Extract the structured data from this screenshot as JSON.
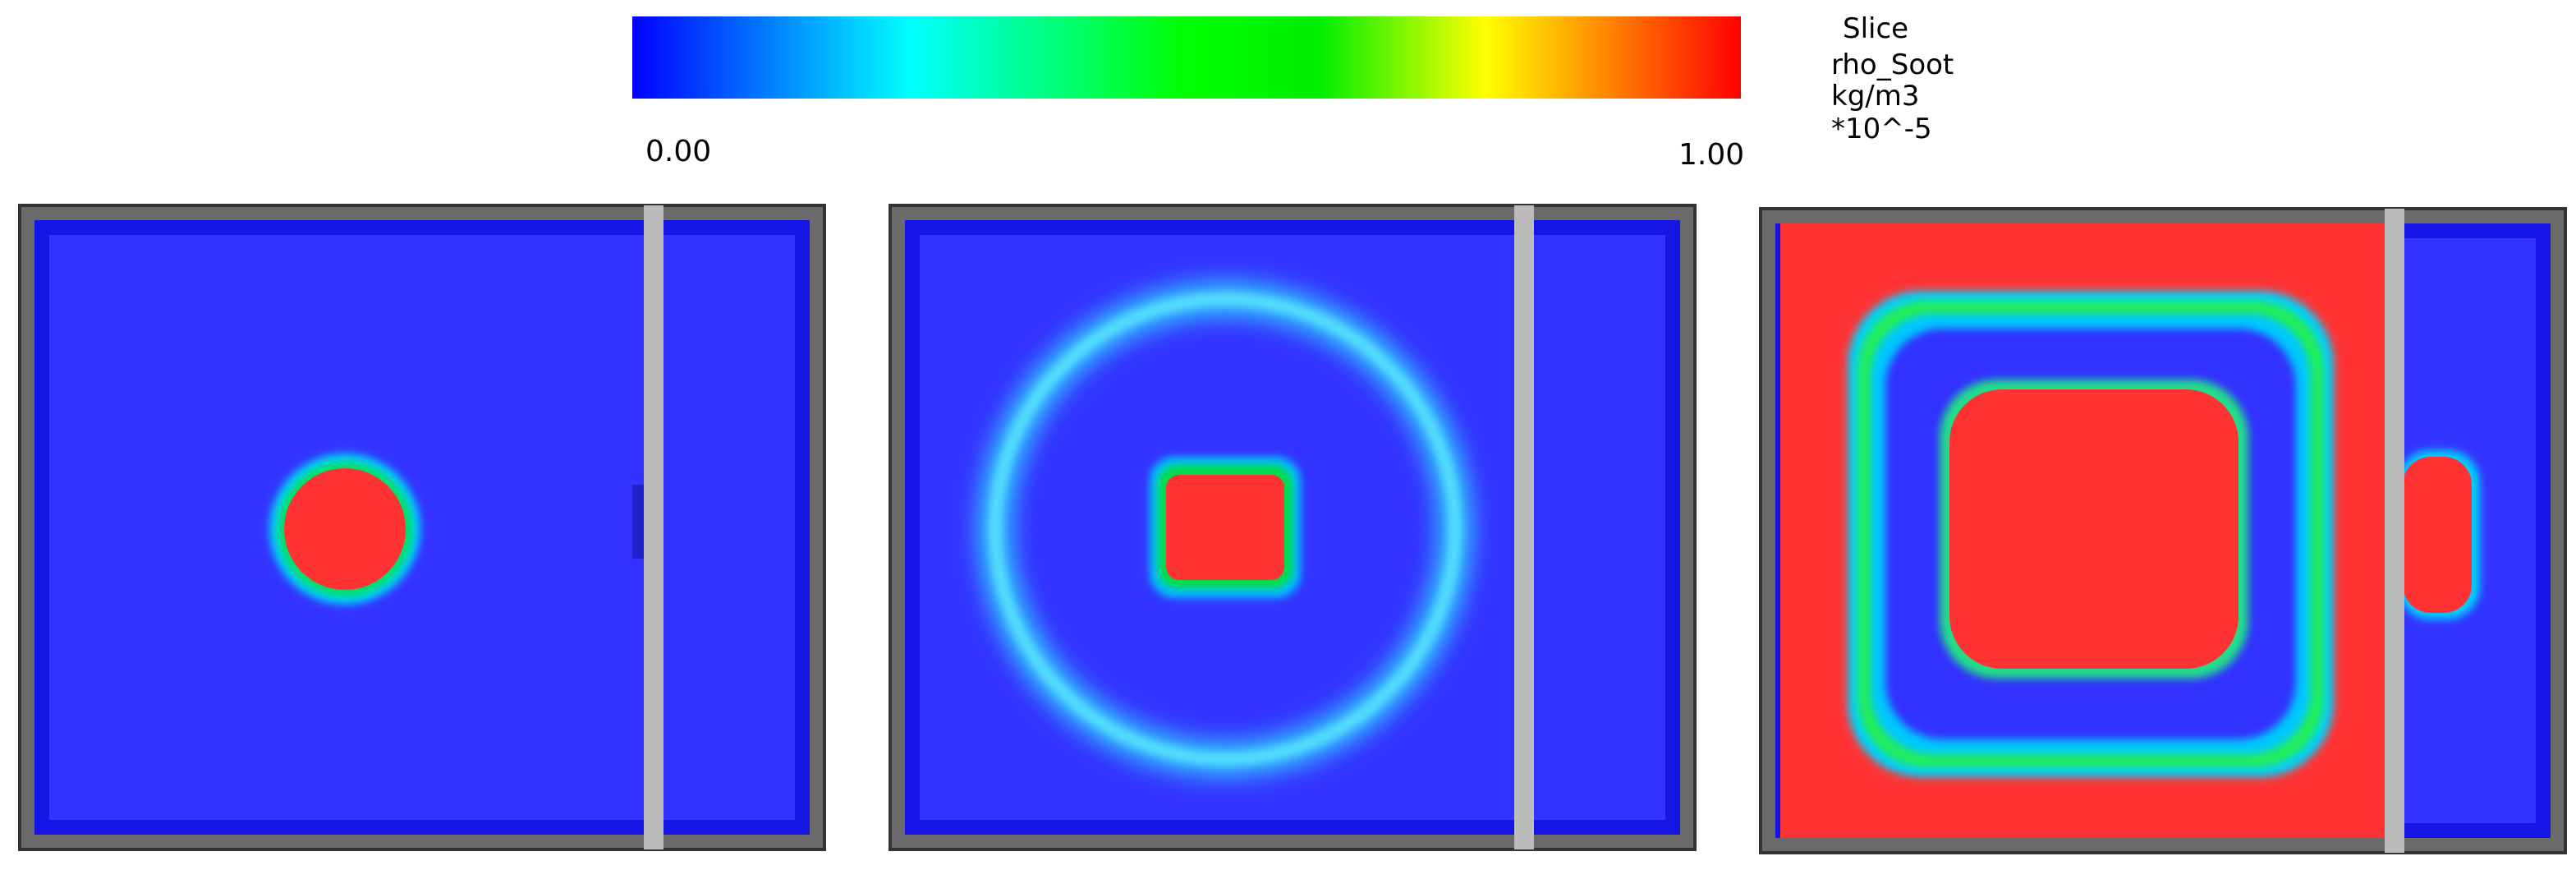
{
  "colorbar": {
    "min_label": "0.00",
    "max_label": "1.00"
  },
  "legend": {
    "lines": [
      "Slice",
      "rho_Soot",
      "kg/m3",
      "*10^-5"
    ]
  }
}
